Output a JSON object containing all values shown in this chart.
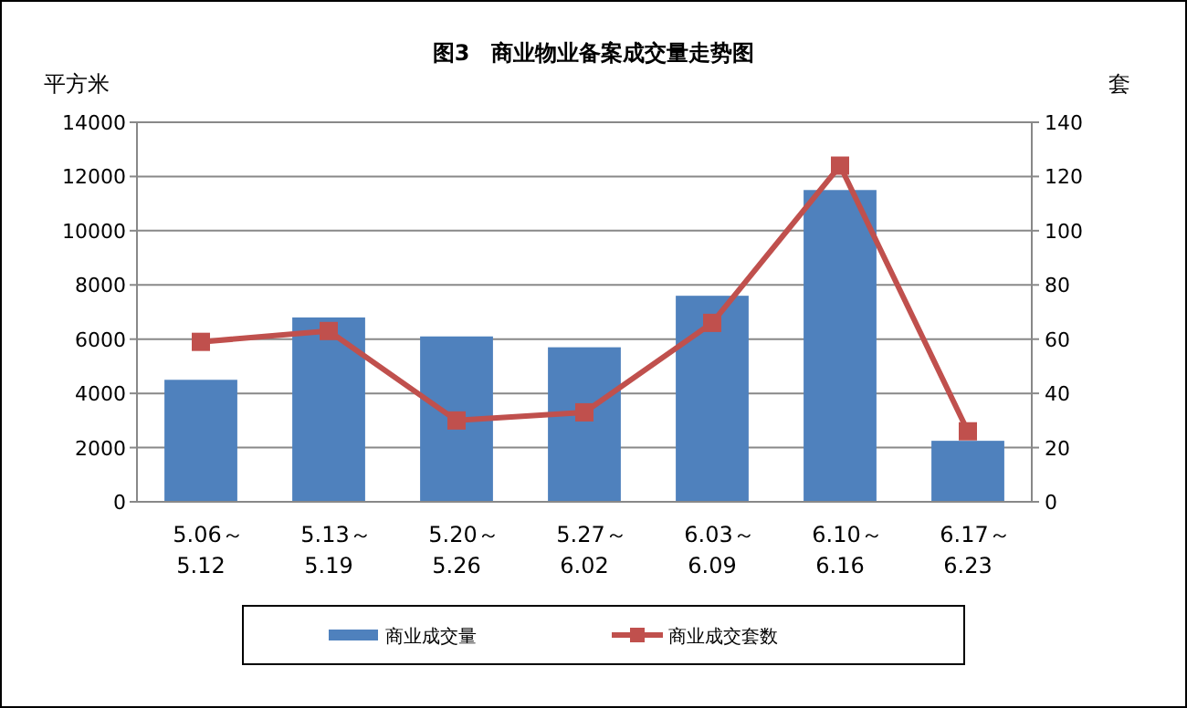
{
  "chart_data": {
    "type": "bar",
    "title": "图3　商业物业备案成交量走势图",
    "ylabel": "平方米",
    "y2label": "套",
    "categories": [
      "5.06～5.12",
      "5.13～5.19",
      "5.20～5.26",
      "5.27～6.02",
      "6.03～6.09",
      "6.10～6.16",
      "6.17～6.23"
    ],
    "series": [
      {
        "name": "商业成交量",
        "color": "#4f81bd",
        "values": [
          4500,
          6800,
          6100,
          5700,
          7600,
          11500,
          2250
        ]
      },
      {
        "name": "商业成交套数",
        "type": "line",
        "axis": "y2",
        "color": "#c0504d",
        "marker": "square",
        "values": [
          59,
          63,
          30,
          33,
          66,
          124,
          26
        ]
      }
    ],
    "ylim": [
      0,
      14000
    ],
    "yticks": [
      0,
      2000,
      4000,
      6000,
      8000,
      10000,
      12000,
      14000
    ],
    "y2lim": [
      0,
      140
    ],
    "y2ticks": [
      0,
      20,
      40,
      60,
      80,
      100,
      120,
      140
    ],
    "grid": "y",
    "legend": "bottom"
  }
}
